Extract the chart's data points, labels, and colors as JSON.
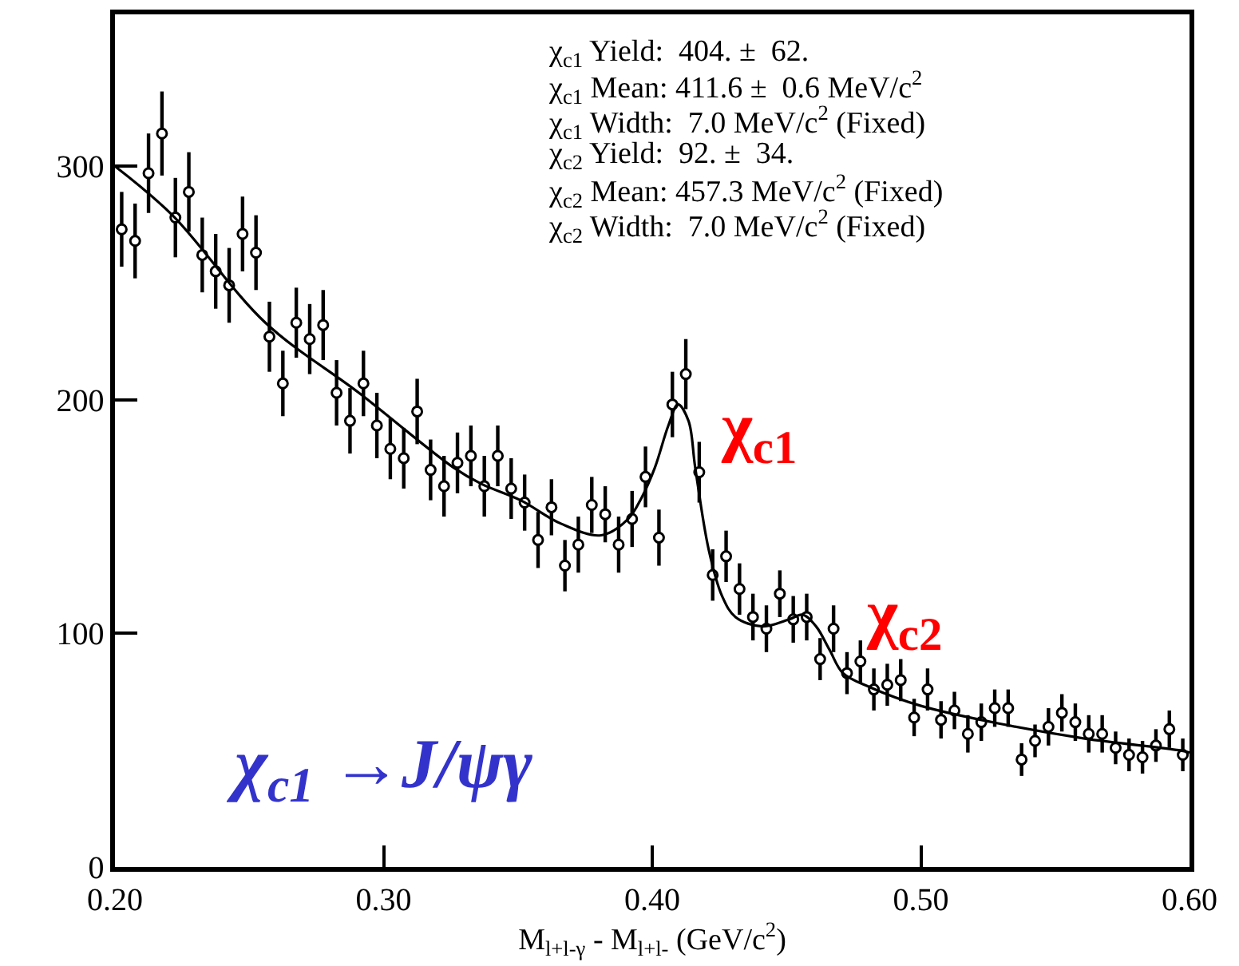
{
  "chart_data": {
    "type": "scatter",
    "xlabel": "M$_{l+l-γ}$ - M$_{l+l-}$ (GeV/c$^{2}$)",
    "xlim": [
      0.2,
      0.6
    ],
    "xticks": [
      {
        "value": 0.2,
        "label": "0.20"
      },
      {
        "value": 0.3,
        "label": "0.30"
      },
      {
        "value": 0.4,
        "label": "0.40"
      },
      {
        "value": 0.5,
        "label": "0.50"
      },
      {
        "value": 0.6,
        "label": "0.60"
      }
    ],
    "ylim": [
      0,
      365
    ],
    "yticks": [
      0,
      100,
      200,
      300
    ],
    "series": [
      {
        "marker": "circle",
        "color": "#000000",
        "x": [
          0.2025,
          0.2075,
          0.2125,
          0.2175,
          0.2225,
          0.2275,
          0.2325,
          0.2375,
          0.2425,
          0.2475,
          0.2525,
          0.2575,
          0.2625,
          0.2675,
          0.2725,
          0.2775,
          0.2825,
          0.2875,
          0.2925,
          0.2975,
          0.3025,
          0.3075,
          0.3125,
          0.3175,
          0.3225,
          0.3275,
          0.3325,
          0.3375,
          0.3425,
          0.3475,
          0.3525,
          0.3575,
          0.3625,
          0.3675,
          0.3725,
          0.3775,
          0.3825,
          0.3875,
          0.3925,
          0.3975,
          0.4025,
          0.4075,
          0.4125,
          0.4175,
          0.4225,
          0.4275,
          0.4325,
          0.4375,
          0.4425,
          0.4475,
          0.4525,
          0.4575,
          0.4625,
          0.4675,
          0.4725,
          0.4775,
          0.4825,
          0.4875,
          0.4925,
          0.4975,
          0.5025,
          0.5075,
          0.5125,
          0.5175,
          0.5225,
          0.5275,
          0.5325,
          0.5375,
          0.5425,
          0.5475,
          0.5525,
          0.5575,
          0.5625,
          0.5675,
          0.5725,
          0.5775,
          0.5825,
          0.5875,
          0.5925,
          0.5975
        ],
        "values": [
          273,
          268,
          297,
          314,
          278,
          289,
          262,
          255,
          249,
          271,
          263,
          227,
          207,
          233,
          226,
          232,
          203,
          191,
          207,
          189,
          179,
          175,
          195,
          170,
          163,
          173,
          176,
          163,
          176,
          162,
          156,
          140,
          154,
          129,
          138,
          155,
          151,
          138,
          149,
          167,
          141,
          198,
          211,
          169,
          125,
          133,
          119,
          107,
          102,
          117,
          106,
          107,
          89,
          102,
          83,
          88,
          76,
          78,
          80,
          64,
          76,
          63,
          67,
          57,
          62,
          68,
          68,
          46,
          54,
          60,
          66,
          62,
          57,
          57,
          51,
          48,
          47,
          52,
          59,
          48
        ],
        "errors": [
          16,
          16,
          17,
          18,
          17,
          17,
          16,
          16,
          16,
          16,
          16,
          15,
          14,
          15,
          15,
          15,
          14,
          14,
          14,
          14,
          13,
          13,
          14,
          13,
          13,
          13,
          13,
          13,
          13,
          13,
          12,
          12,
          12,
          11,
          12,
          12,
          12,
          12,
          12,
          13,
          12,
          14,
          15,
          13,
          11,
          11,
          11,
          10,
          10,
          10,
          10,
          10,
          9,
          10,
          9,
          9,
          9,
          9,
          9,
          8,
          9,
          8,
          8,
          8,
          8,
          8,
          8,
          7,
          7,
          8,
          8,
          8,
          8,
          8,
          7,
          7,
          7,
          7,
          8,
          7
        ]
      },
      {
        "type": "line",
        "color": "#000000",
        "line_style": "solid",
        "x": [
          0.2,
          0.2214,
          0.256,
          0.2908,
          0.326,
          0.3364,
          0.351,
          0.366,
          0.381,
          0.391,
          0.396,
          0.401,
          0.406,
          0.4096,
          0.4135,
          0.416,
          0.421,
          0.426,
          0.431,
          0.441,
          0.451,
          0.456,
          0.461,
          0.466,
          0.471,
          0.481,
          0.5,
          0.531,
          0.561,
          0.596,
          0.6
        ],
        "values": [
          300,
          279,
          233,
          203,
          171,
          164,
          157,
          147,
          142,
          149,
          158,
          171,
          189,
          198,
          191,
          171,
          136,
          116,
          107,
          103,
          106,
          108,
          103,
          93,
          83,
          77,
          69,
          61,
          55,
          50,
          49
        ]
      }
    ],
    "annotations": [
      "χ$_{c1}$ Yield:  404. ±  62.",
      "χ$_{c1}$ Mean: 411.6 ±  0.6 MeV/c$^{2}$",
      "χ$_{c1}$ Width:  7.0 MeV/c$^{2}$ (Fixed)",
      "χ$_{c2}$ Yield:  92. ±  34.",
      "χ$_{c2}$ Mean: 457.3 MeV/c$^{2}$ (Fixed)",
      "χ$_{c2}$ Width:  7.0 MeV/c$^{2}$ (Fixed)",
      "χ$_{c1}$ →J/ψγ",
      "χ$_{c1}$",
      "χ$_{c2}$"
    ]
  }
}
